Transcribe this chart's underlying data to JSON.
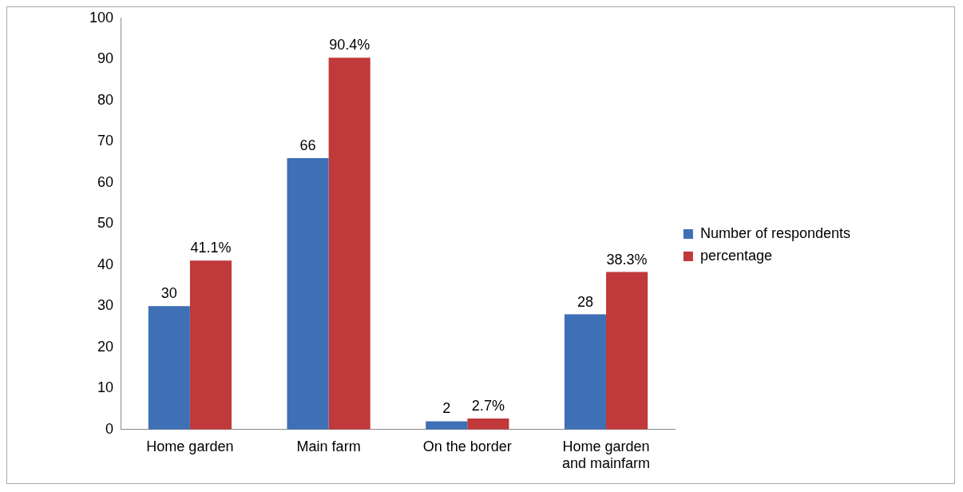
{
  "chart_data": {
    "type": "bar",
    "categories": [
      "Home garden",
      "Main farm",
      "On the border",
      "Home garden and mainfarm"
    ],
    "series": [
      {
        "name": "Number of respondents",
        "color": "#3f6fb5",
        "values": [
          30,
          66,
          2,
          28
        ],
        "value_labels": [
          "30",
          "66",
          "2",
          "28"
        ]
      },
      {
        "name": "percentage",
        "color": "#c0393b",
        "values": [
          41.1,
          90.4,
          2.7,
          38.3
        ],
        "value_labels": [
          "41.1%",
          "90.4%",
          "2.7%",
          "38.3%"
        ]
      }
    ],
    "ylim": [
      0,
      100
    ],
    "yticks": [
      0,
      10,
      20,
      30,
      40,
      50,
      60,
      70,
      80,
      90,
      100
    ],
    "grid": false,
    "legend": "right"
  }
}
